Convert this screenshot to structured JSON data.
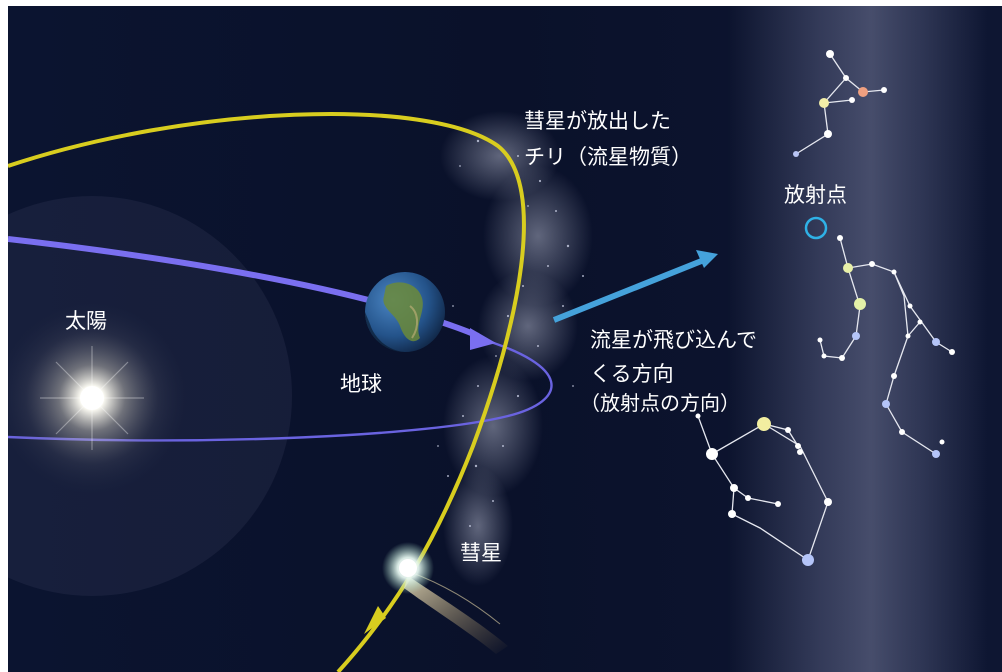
{
  "labels": {
    "sun": "太陽",
    "earth": "地球",
    "comet": "彗星",
    "dust_line1": "彗星が放出した",
    "dust_line2": "チリ（流星物質）",
    "radiant": "放射点",
    "direction_line1": "流星が飛び込んで",
    "direction_line2": "くる方向",
    "direction_line3": "（放射点の方向）"
  },
  "colors": {
    "space_bg": "#0a1128",
    "comet_orbit": "#ddd21a",
    "earth_orbit": "#7168e8",
    "direction_arrow": "#4aa6dd",
    "radiant_marker": "#2fb1e6",
    "sun_glow": "#ffffff",
    "milky_way": "#8a8fb0"
  },
  "icons": {
    "sun": "sun-glow-icon",
    "earth": "earth-globe-icon",
    "comet": "comet-icon",
    "radiant": "radiant-circle-icon"
  }
}
